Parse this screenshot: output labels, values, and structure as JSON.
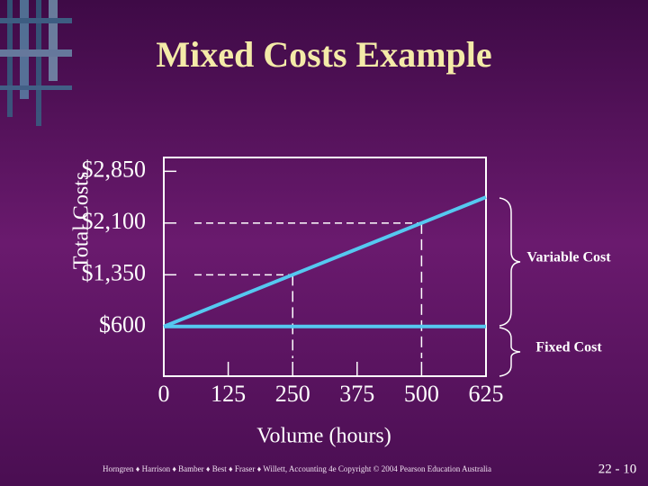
{
  "chart_data": {
    "type": "line",
    "title": "Mixed Costs Example",
    "x_label": "Volume (hours)",
    "y_label": "Total Costs",
    "x": [
      0,
      250,
      500,
      625
    ],
    "series": [
      {
        "color": "#55c8f0",
        "values": [
          600,
          1350,
          2100,
          2475
        ]
      },
      {
        "color": "#55c8f0",
        "values": [
          600,
          600,
          600,
          600
        ]
      }
    ],
    "xlim": [
      0,
      625
    ],
    "xticks": [
      0,
      125,
      250,
      375,
      500,
      625
    ],
    "ylim": [
      -120,
      3050
    ],
    "yticks": [
      {
        "value": 600,
        "label": "$600"
      },
      {
        "value": 1350,
        "label": "$1,350"
      },
      {
        "value": 2100,
        "label": "$2,100"
      },
      {
        "value": 2850,
        "label": "$2,850"
      }
    ],
    "annotations": [
      "Variable Cost",
      "Fixed Cost"
    ]
  },
  "footer": "Horngren ♦ Harrison ♦ Bamber ♦ Best ♦ Fraser ♦ Willett, Accounting 4e Copyright © 2004 Pearson Education Australia",
  "page_number": "22 - 10"
}
